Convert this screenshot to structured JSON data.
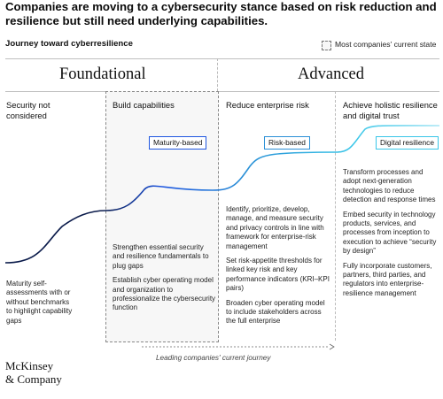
{
  "title": "Companies are moving to a cybersecurity stance based on risk reduction and resilience but still need underlying capabilities.",
  "subtitle": "Journey toward cyberresilience",
  "legend": {
    "label": "Most companies' current state"
  },
  "bands": {
    "foundational": "Foundational",
    "advanced": "Advanced"
  },
  "stages": [
    {
      "title": "Security not considered",
      "pill": "",
      "body": [
        "Maturity self-assessments with or without benchmarks to highlight capability gaps"
      ]
    },
    {
      "title": "Build capabilities",
      "pill": "Maturity-based",
      "body": [
        "Strengthen essential security and resilience fundamentals to plug gaps",
        "Establish cyber operating model and organization to professionalize the cybersecurity function"
      ]
    },
    {
      "title": "Reduce enterprise risk",
      "pill": "Risk-based",
      "body": [
        "Identify, prioritize, develop, manage, and measure security and privacy controls in line with framework for enterprise-risk management",
        "Set risk-appetite thresholds for linked key risk and key performance indicators (KRI–KPI pairs)",
        "Broaden cyber operating model to include stakeholders across the full enterprise"
      ]
    },
    {
      "title": "Achieve holistic resilience and digital trust",
      "pill": "Digital resilience",
      "body": [
        "Transform processes and adopt next-generation technologies to reduce detection and response times",
        "Embed security in technology products, services, and processes from inception to execution to achieve “security by design”",
        "Fully incorporate customers, partners, third parties, and regulators into enterprise-resilience management"
      ]
    }
  ],
  "footer": {
    "journey": "Leading companies' current journey",
    "logo_line1": "McKinsey",
    "logo_line2": "& Company"
  },
  "colors": {
    "dark_navy": "#0a1a4a",
    "bright_blue": "#1f56e0",
    "mid_blue": "#2a8fd6",
    "cyan": "#39c6e8",
    "light_cyan": "#a8e6f5"
  }
}
